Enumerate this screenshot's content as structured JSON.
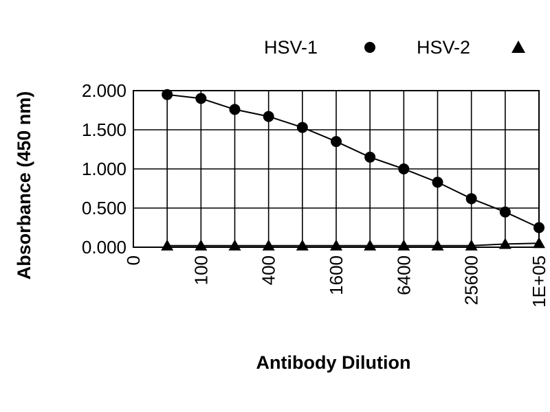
{
  "chart_data": {
    "type": "line",
    "title": "",
    "xlabel": "Antibody Dilution",
    "ylabel": "Absorbance (450 nm)",
    "x_tick_labels": [
      "0",
      "100",
      "400",
      "1600",
      "6400",
      "25600",
      "1E+05"
    ],
    "x": [
      50,
      100,
      200,
      400,
      800,
      1600,
      3200,
      6400,
      12800,
      25600,
      51200,
      102400
    ],
    "ylim": [
      0,
      2
    ],
    "y_ticks": [
      "0.000",
      "0.500",
      "1.000",
      "1.500",
      "2.000"
    ],
    "grid": true,
    "legend_position": "top-right",
    "series": [
      {
        "name": "HSV-1",
        "marker": "circle",
        "values": [
          1.95,
          1.9,
          1.76,
          1.67,
          1.53,
          1.35,
          1.15,
          1.0,
          0.83,
          0.62,
          0.45,
          0.25
        ]
      },
      {
        "name": "HSV-2",
        "marker": "triangle",
        "values": [
          0.02,
          0.02,
          0.02,
          0.02,
          0.02,
          0.02,
          0.02,
          0.02,
          0.02,
          0.02,
          0.04,
          0.05
        ]
      }
    ],
    "colors": {
      "line": "#000000",
      "background": "#ffffff"
    }
  }
}
